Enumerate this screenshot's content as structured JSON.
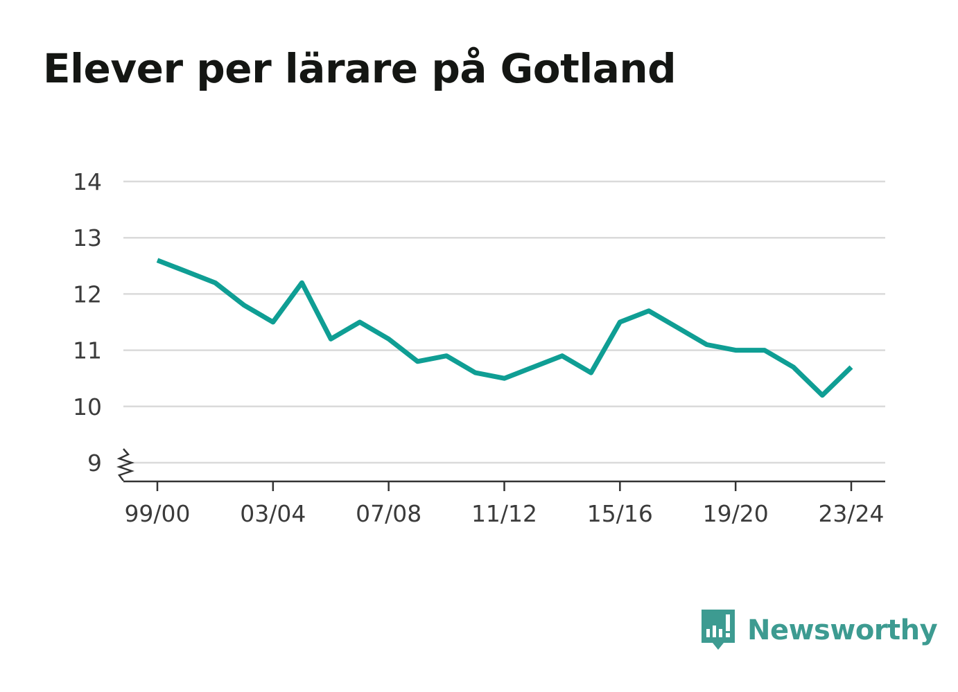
{
  "page": {
    "title": "Elever per lärare på Gotland"
  },
  "brand": {
    "name": "Newsworthy",
    "icon": "newsworthy-logo-icon",
    "color": "#3d9b91"
  },
  "colors": {
    "line": "#0f9e94",
    "grid": "#dadada",
    "axis": "#333333",
    "text": "#3b3b3b"
  },
  "chart_data": {
    "type": "line",
    "title": "Elever per lärare på Gotland",
    "xlabel": "",
    "ylabel": "",
    "x": [
      "99/00",
      "00/01",
      "01/02",
      "02/03",
      "03/04",
      "04/05",
      "05/06",
      "06/07",
      "07/08",
      "08/09",
      "09/10",
      "10/11",
      "11/12",
      "12/13",
      "13/14",
      "14/15",
      "15/16",
      "16/17",
      "17/18",
      "18/19",
      "19/20",
      "20/21",
      "21/22",
      "22/23",
      "23/24"
    ],
    "series": [
      {
        "values": [
          12.6,
          12.4,
          12.2,
          11.8,
          11.5,
          12.2,
          11.2,
          11.5,
          11.2,
          10.8,
          10.9,
          10.6,
          10.5,
          10.7,
          10.9,
          10.6,
          11.5,
          11.7,
          11.4,
          11.1,
          11.0,
          11.0,
          10.7,
          10.2,
          10.7
        ]
      }
    ],
    "y_ticks": [
      9,
      10,
      11,
      12,
      13,
      14
    ],
    "x_tick_labels": [
      "99/00",
      "03/04",
      "07/08",
      "11/12",
      "15/16",
      "19/20",
      "23/24"
    ],
    "ylim": [
      9,
      14
    ],
    "y_axis_break": true,
    "grid": true,
    "legend": "none"
  }
}
